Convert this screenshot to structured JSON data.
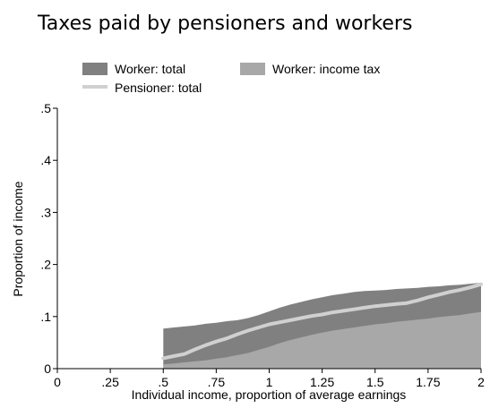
{
  "chart_data": {
    "type": "area",
    "title": "Taxes paid by pensioners and workers",
    "xlabel": "Individual income, proportion of average earnings",
    "ylabel": "Proportion of income",
    "xlim": [
      0,
      2
    ],
    "ylim": [
      0,
      0.5
    ],
    "x_ticks": [
      "0",
      ".25",
      ".5",
      ".75",
      "1",
      "1.25",
      "1.5",
      "1.75",
      "2"
    ],
    "x_tick_values": [
      0,
      0.25,
      0.5,
      0.75,
      1,
      1.25,
      1.5,
      1.75,
      2
    ],
    "y_ticks": [
      "0",
      ".1",
      ".2",
      ".3",
      ".4",
      ".5"
    ],
    "y_tick_values": [
      0,
      0.1,
      0.2,
      0.3,
      0.4,
      0.5
    ],
    "grid": false,
    "legend_position": "top",
    "x": [
      0.5,
      0.55,
      0.6,
      0.65,
      0.7,
      0.75,
      0.8,
      0.85,
      0.9,
      0.95,
      1.0,
      1.05,
      1.1,
      1.15,
      1.2,
      1.25,
      1.3,
      1.35,
      1.4,
      1.45,
      1.5,
      1.55,
      1.6,
      1.65,
      1.7,
      1.75,
      1.8,
      1.85,
      1.9,
      1.95,
      2.0
    ],
    "series": [
      {
        "name": "Worker: total",
        "kind": "area",
        "color": "#808080",
        "values": [
          0.077,
          0.079,
          0.081,
          0.083,
          0.086,
          0.088,
          0.091,
          0.093,
          0.097,
          0.103,
          0.11,
          0.117,
          0.123,
          0.128,
          0.133,
          0.137,
          0.141,
          0.144,
          0.147,
          0.149,
          0.15,
          0.151,
          0.153,
          0.154,
          0.155,
          0.157,
          0.158,
          0.16,
          0.161,
          0.163,
          0.165
        ]
      },
      {
        "name": "Worker: income tax",
        "kind": "area",
        "color": "#a8a8a8",
        "values": [
          0.008,
          0.01,
          0.012,
          0.014,
          0.016,
          0.019,
          0.022,
          0.026,
          0.03,
          0.036,
          0.042,
          0.049,
          0.055,
          0.06,
          0.065,
          0.069,
          0.073,
          0.076,
          0.079,
          0.082,
          0.085,
          0.087,
          0.09,
          0.092,
          0.094,
          0.096,
          0.099,
          0.101,
          0.103,
          0.106,
          0.109
        ]
      },
      {
        "name": "Pensioner: total",
        "kind": "line",
        "color": "#d0d0d0",
        "values": [
          0.02,
          0.024,
          0.028,
          0.037,
          0.045,
          0.052,
          0.058,
          0.066,
          0.073,
          0.079,
          0.085,
          0.089,
          0.093,
          0.097,
          0.101,
          0.104,
          0.108,
          0.111,
          0.114,
          0.117,
          0.12,
          0.122,
          0.124,
          0.126,
          0.131,
          0.137,
          0.142,
          0.147,
          0.151,
          0.156,
          0.162
        ]
      }
    ]
  }
}
